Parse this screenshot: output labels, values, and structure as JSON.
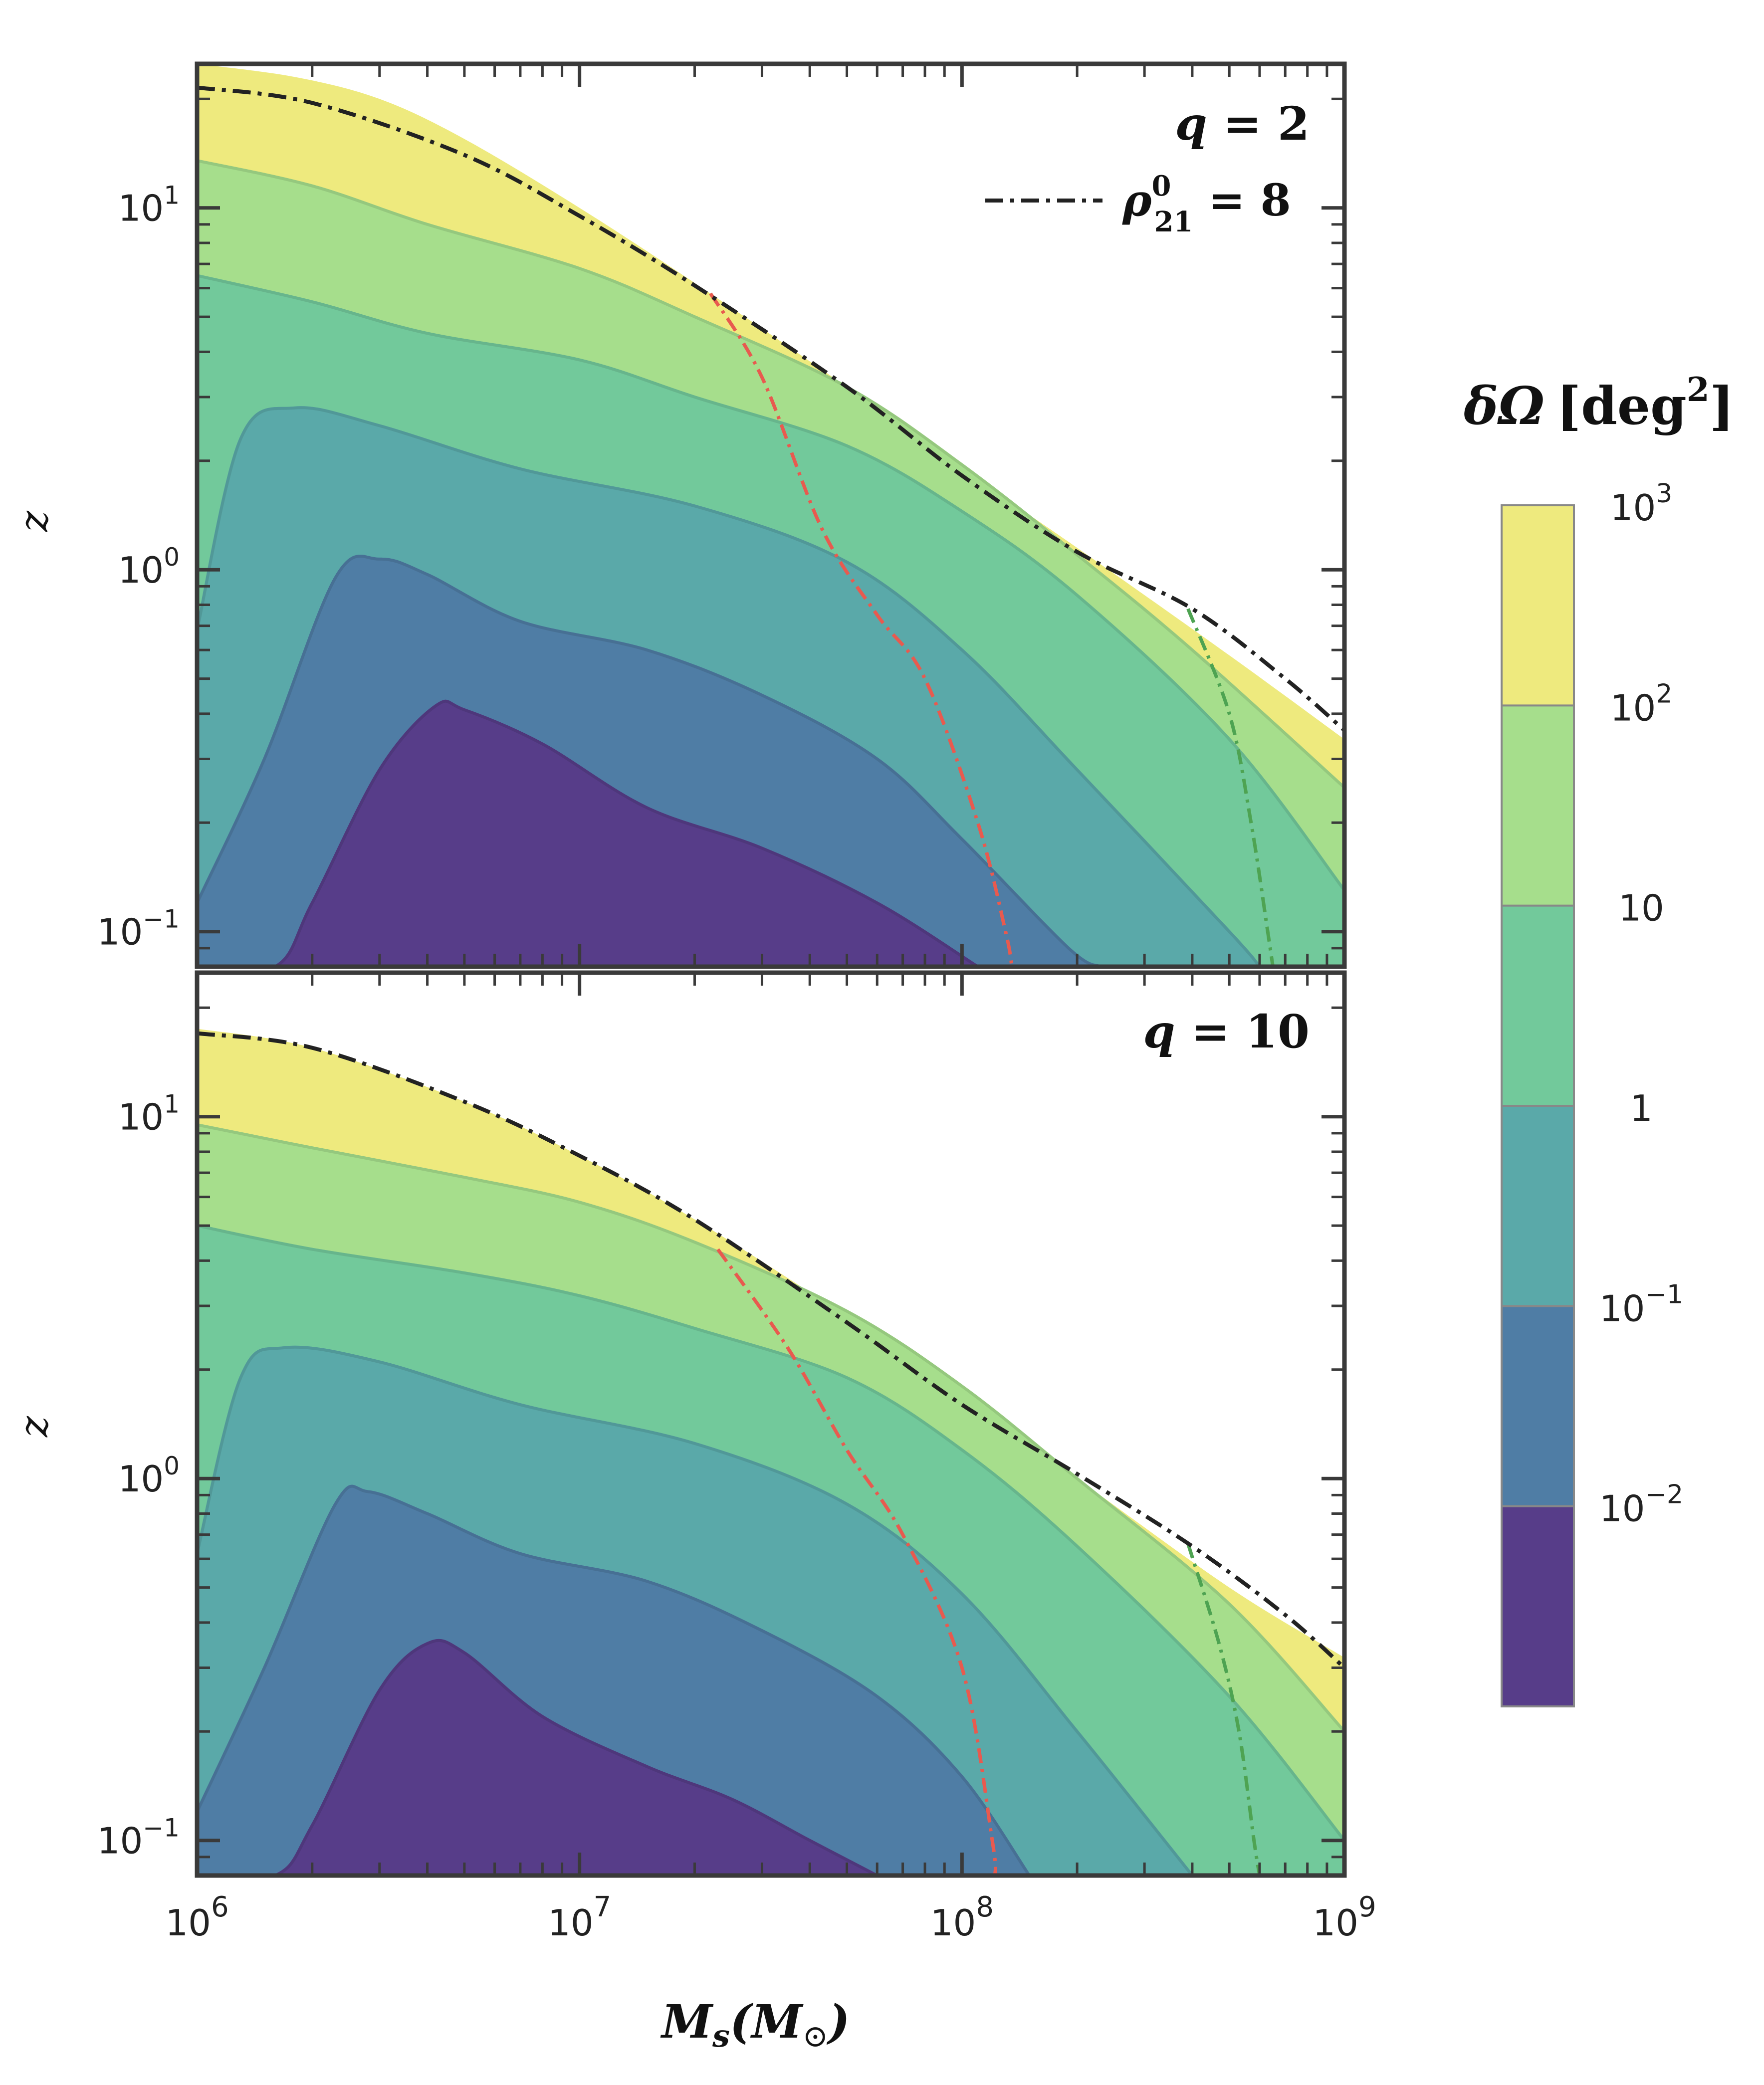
{
  "figure": {
    "xlabel": {
      "main": "M",
      "sub": "s",
      "paren": "(M",
      "sun": "⊙",
      "close": ")"
    },
    "ylabel": "z",
    "x_ticks": [
      {
        "value": 1000000,
        "base": "10",
        "exp": "6"
      },
      {
        "value": 10000000,
        "base": "10",
        "exp": "7"
      },
      {
        "value": 100000000,
        "base": "10",
        "exp": "8"
      },
      {
        "value": 1000000000,
        "base": "10",
        "exp": "9"
      }
    ],
    "y_ticks": [
      {
        "value": 0.1,
        "base": "10",
        "exp": "−1"
      },
      {
        "value": 1,
        "base": "10",
        "exp": "0"
      },
      {
        "value": 10,
        "base": "10",
        "exp": "1"
      }
    ]
  },
  "colorbar": {
    "title": "δΩ [deg²]",
    "title_parts": {
      "symbol": "δΩ",
      "open": "[deg",
      "exp": "2",
      "close": "]"
    },
    "levels": [
      {
        "label_base": "10",
        "label_exp": "−2",
        "color": "#573d89"
      },
      {
        "label_base": "10",
        "label_exp": "−1",
        "color": "#4f7da5"
      },
      {
        "label_base": "1",
        "label_exp": "",
        "color": "#5aa9a9"
      },
      {
        "label_base": "10",
        "label_exp": "",
        "color": "#72c99b"
      },
      {
        "label_base": "10",
        "label_exp": "2",
        "color": "#a6de8c"
      },
      {
        "label_base": "10",
        "label_exp": "3",
        "color": "#eeea7e"
      }
    ]
  },
  "chart_data": [
    {
      "type": "contourf",
      "panel": "top",
      "annotation": "q = 2",
      "annotation_parts": {
        "var": "q",
        "eq": " = ",
        "val": "2"
      },
      "legend": {
        "label": "ρ₂₁⁰ = 8",
        "symbol": "ρ",
        "sup": "0",
        "sub": "21",
        "eq": " = 8",
        "placement": "top-right"
      },
      "xlim": [
        1000000,
        1000000000
      ],
      "ylim": [
        0.08,
        25
      ],
      "xscale": "log",
      "yscale": "log",
      "contour_boundaries_z": [
        {
          "level": "10^3 (outer edge)",
          "points": [
            [
              1000000.0,
              25
            ],
            [
              1800000.0,
              23
            ],
            [
              3000000.0,
              20
            ],
            [
              5000000.0,
              15.5
            ],
            [
              10000000.0,
              10
            ],
            [
              20000000.0,
              6.2
            ],
            [
              50000000.0,
              3.2
            ],
            [
              100000000.0,
              1.9
            ],
            [
              200000000.0,
              1.15
            ],
            [
              500000000.0,
              0.58
            ],
            [
              1000000000.0,
              0.34
            ]
          ]
        },
        {
          "level": "10^2",
          "points": [
            [
              1000000.0,
              13.5
            ],
            [
              2000000.0,
              11.5
            ],
            [
              4000000.0,
              9
            ],
            [
              10000000.0,
              6.8
            ],
            [
              20000000.0,
              5
            ],
            [
              50000000.0,
              3.2
            ],
            [
              100000000.0,
              1.95
            ],
            [
              200000000.0,
              1.1
            ],
            [
              400000000.0,
              0.6
            ],
            [
              1000000000.0,
              0.25
            ]
          ]
        },
        {
          "level": "10",
          "points": [
            [
              1000000.0,
              6.5
            ],
            [
              2000000.0,
              5.5
            ],
            [
              4000000.0,
              4.5
            ],
            [
              10000000.0,
              3.8
            ],
            [
              20000000.0,
              3
            ],
            [
              50000000.0,
              2.2
            ],
            [
              100000000.0,
              1.45
            ],
            [
              200000000.0,
              0.85
            ],
            [
              500000000.0,
              0.34
            ],
            [
              1000000000.0,
              0.13
            ]
          ]
        },
        {
          "level": "1",
          "points": [
            [
              1000000.0,
              0.68
            ],
            [
              1300000.0,
              2.3
            ],
            [
              1800000.0,
              2.8
            ],
            [
              3000000.0,
              2.5
            ],
            [
              7000000.0,
              1.9
            ],
            [
              20000000.0,
              1.5
            ],
            [
              50000000.0,
              1.05
            ],
            [
              100000000.0,
              0.6
            ],
            [
              200000000.0,
              0.28
            ],
            [
              500000000.0,
              0.1
            ],
            [
              600000000.0,
              0.08
            ]
          ]
        },
        {
          "level": "10^-1",
          "points": [
            [
              1000000.0,
              0.12
            ],
            [
              1500000.0,
              0.3
            ],
            [
              2300000.0,
              0.95
            ],
            [
              3000000.0,
              1.07
            ],
            [
              4000000.0,
              0.97
            ],
            [
              7000000.0,
              0.72
            ],
            [
              15000000.0,
              0.6
            ],
            [
              30000000.0,
              0.45
            ],
            [
              60000000.0,
              0.3
            ],
            [
              100000000.0,
              0.18
            ],
            [
              190000000.0,
              0.09
            ],
            [
              230000000.0,
              0.08
            ]
          ]
        },
        {
          "level": "10^-2",
          "points": [
            [
              1000000.0,
              0.08
            ],
            [
              1600000.0,
              0.08
            ],
            [
              2000000.0,
              0.12
            ],
            [
              3000000.0,
              0.28
            ],
            [
              4200000.0,
              0.42
            ],
            [
              5000000.0,
              0.41
            ],
            [
              8000000.0,
              0.33
            ],
            [
              15000000.0,
              0.22
            ],
            [
              30000000.0,
              0.17
            ],
            [
              60000000.0,
              0.12
            ],
            [
              110000000.0,
              0.08
            ]
          ]
        }
      ],
      "threshold_line": {
        "label": "ρ₂₁⁰ = 8",
        "points": [
          [
            1000000.0,
            21.5
          ],
          [
            2000000.0,
            19.5
          ],
          [
            5000000.0,
            14
          ],
          [
            10000000.0,
            9.5
          ],
          [
            20000000.0,
            6.1
          ],
          [
            50000000.0,
            3.2
          ],
          [
            100000000.0,
            1.82
          ],
          [
            200000000.0,
            1.12
          ],
          [
            400000000.0,
            0.78
          ],
          [
            700000000.0,
            0.5
          ],
          [
            1000000000.0,
            0.36
          ]
        ]
      },
      "red_line": {
        "points": [
          [
            22000000.0,
            5.8
          ],
          [
            30000000.0,
            3.4
          ],
          [
            43000000.0,
            1.3
          ],
          [
            60000000.0,
            0.75
          ],
          [
            80000000.0,
            0.5
          ],
          [
            110000000.0,
            0.2
          ],
          [
            130000000.0,
            0.1
          ],
          [
            135000000.0,
            0.08
          ]
        ]
      },
      "green_line": {
        "points": [
          [
            390000000.0,
            0.78
          ],
          [
            500000000.0,
            0.4
          ],
          [
            570000000.0,
            0.2
          ],
          [
            630000000.0,
            0.1
          ],
          [
            650000000.0,
            0.08
          ]
        ]
      }
    },
    {
      "type": "contourf",
      "panel": "bottom",
      "annotation": "q = 10",
      "annotation_parts": {
        "var": "q",
        "eq": " = ",
        "val": "10"
      },
      "xlim": [
        1000000,
        1000000000
      ],
      "ylim": [
        0.08,
        25
      ],
      "xscale": "log",
      "yscale": "log",
      "contour_boundaries_z": [
        {
          "level": "10^3 (outer edge)",
          "points": [
            [
              1000000.0,
              17.5
            ],
            [
              2000000.0,
              15.5
            ],
            [
              5000000.0,
              11
            ],
            [
              10000000.0,
              7.8
            ],
            [
              20000000.0,
              5.2
            ],
            [
              50000000.0,
              2.8
            ],
            [
              100000000.0,
              1.68
            ],
            [
              200000000.0,
              1
            ],
            [
              500000000.0,
              0.5
            ],
            [
              1000000000.0,
              0.32
            ]
          ]
        },
        {
          "level": "10^2",
          "points": [
            [
              1000000.0,
              9.5
            ],
            [
              2000000.0,
              8.2
            ],
            [
              5000000.0,
              6.8
            ],
            [
              10000000.0,
              5.8
            ],
            [
              20000000.0,
              4.5
            ],
            [
              50000000.0,
              2.9
            ],
            [
              100000000.0,
              1.8
            ],
            [
              200000000.0,
              1
            ],
            [
              500000000.0,
              0.45
            ],
            [
              1000000000.0,
              0.2
            ]
          ]
        },
        {
          "level": "10",
          "points": [
            [
              1000000.0,
              5
            ],
            [
              2000000.0,
              4.3
            ],
            [
              5000000.0,
              3.7
            ],
            [
              10000000.0,
              3.2
            ],
            [
              20000000.0,
              2.6
            ],
            [
              50000000.0,
              1.9
            ],
            [
              100000000.0,
              1.2
            ],
            [
              200000000.0,
              0.65
            ],
            [
              500000000.0,
              0.25
            ],
            [
              1000000000.0,
              0.1
            ]
          ]
        },
        {
          "level": "1",
          "points": [
            [
              1000000.0,
              0.62
            ],
            [
              1300000.0,
              1.9
            ],
            [
              1700000.0,
              2.3
            ],
            [
              3000000.0,
              2.1
            ],
            [
              7000000.0,
              1.6
            ],
            [
              20000000.0,
              1.25
            ],
            [
              50000000.0,
              0.85
            ],
            [
              100000000.0,
              0.48
            ],
            [
              200000000.0,
              0.2
            ],
            [
              400000000.0,
              0.08
            ]
          ]
        },
        {
          "level": "10^-1",
          "points": [
            [
              1000000.0,
              0.12
            ],
            [
              1500000.0,
              0.3
            ],
            [
              2300000.0,
              0.85
            ],
            [
              2800000.0,
              0.92
            ],
            [
              4000000.0,
              0.8
            ],
            [
              7000000.0,
              0.62
            ],
            [
              15000000.0,
              0.52
            ],
            [
              30000000.0,
              0.38
            ],
            [
              60000000.0,
              0.25
            ],
            [
              100000000.0,
              0.15
            ],
            [
              150000000.0,
              0.08
            ]
          ]
        },
        {
          "level": "10^-2",
          "points": [
            [
              1000000.0,
              0.08
            ],
            [
              1600000.0,
              0.08
            ],
            [
              2000000.0,
              0.11
            ],
            [
              3000000.0,
              0.26
            ],
            [
              4000000.0,
              0.35
            ],
            [
              5000000.0,
              0.33
            ],
            [
              8000000.0,
              0.22
            ],
            [
              15000000.0,
              0.16
            ],
            [
              25000000.0,
              0.13
            ],
            [
              40000000.0,
              0.1
            ],
            [
              60000000.0,
              0.08
            ]
          ]
        }
      ],
      "threshold_line": {
        "label": "ρ₂₁⁰ = 8",
        "points": [
          [
            1000000.0,
            17
          ],
          [
            2000000.0,
            15.5
          ],
          [
            5000000.0,
            11
          ],
          [
            10000000.0,
            7.8
          ],
          [
            20000000.0,
            5.2
          ],
          [
            50000000.0,
            2.7
          ],
          [
            100000000.0,
            1.6
          ],
          [
            200000000.0,
            1.03
          ],
          [
            400000000.0,
            0.65
          ],
          [
            700000000.0,
            0.42
          ],
          [
            1000000000.0,
            0.3
          ]
        ]
      },
      "red_line": {
        "points": [
          [
            23000000.0,
            4.3
          ],
          [
            35000000.0,
            2.3
          ],
          [
            50000000.0,
            1.2
          ],
          [
            70000000.0,
            0.7
          ],
          [
            100000000.0,
            0.3
          ],
          [
            120000000.0,
            0.1
          ],
          [
            122000000.0,
            0.08
          ]
        ]
      },
      "green_line": {
        "points": [
          [
            390000000.0,
            0.66
          ],
          [
            470000000.0,
            0.35
          ],
          [
            530000000.0,
            0.2
          ],
          [
            580000000.0,
            0.1
          ],
          [
            600000000.0,
            0.08
          ]
        ]
      }
    }
  ],
  "colors": {
    "threshold_line": "#222222",
    "red_line": "#e85a4f",
    "green_line": "#4ea352",
    "frame": "#3a3a3a"
  }
}
